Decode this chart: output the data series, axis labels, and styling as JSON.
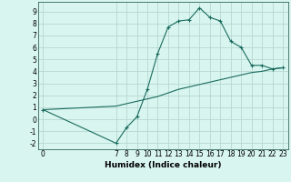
{
  "x_main": [
    0,
    7,
    8,
    9,
    10,
    11,
    12,
    13,
    14,
    15,
    16,
    17,
    18,
    19,
    20,
    21,
    22,
    23
  ],
  "y_main": [
    0.8,
    -2.0,
    -0.7,
    0.2,
    2.5,
    5.5,
    7.7,
    8.2,
    8.3,
    9.3,
    8.5,
    8.2,
    6.5,
    6.0,
    4.5,
    4.5,
    4.2,
    4.3
  ],
  "x_line": [
    0,
    7,
    8,
    9,
    10,
    11,
    12,
    13,
    14,
    15,
    16,
    17,
    18,
    19,
    20,
    21,
    22,
    23
  ],
  "y_line": [
    0.8,
    1.1,
    1.3,
    1.5,
    1.7,
    1.9,
    2.2,
    2.5,
    2.7,
    2.9,
    3.1,
    3.3,
    3.5,
    3.7,
    3.9,
    4.0,
    4.2,
    4.3
  ],
  "color": "#1a6b5e",
  "bg_color": "#d8f5ef",
  "grid_color": "#b8d8d2",
  "xlabel": "Humidex (Indice chaleur)",
  "xlabel_fontsize": 6.5,
  "tick_fontsize": 5.5,
  "xlim": [
    -0.5,
    23.5
  ],
  "ylim": [
    -2.5,
    9.8
  ],
  "yticks": [
    -2,
    -1,
    0,
    1,
    2,
    3,
    4,
    5,
    6,
    7,
    8,
    9
  ],
  "xticks": [
    0,
    7,
    8,
    9,
    10,
    11,
    12,
    13,
    14,
    15,
    16,
    17,
    18,
    19,
    20,
    21,
    22,
    23
  ]
}
